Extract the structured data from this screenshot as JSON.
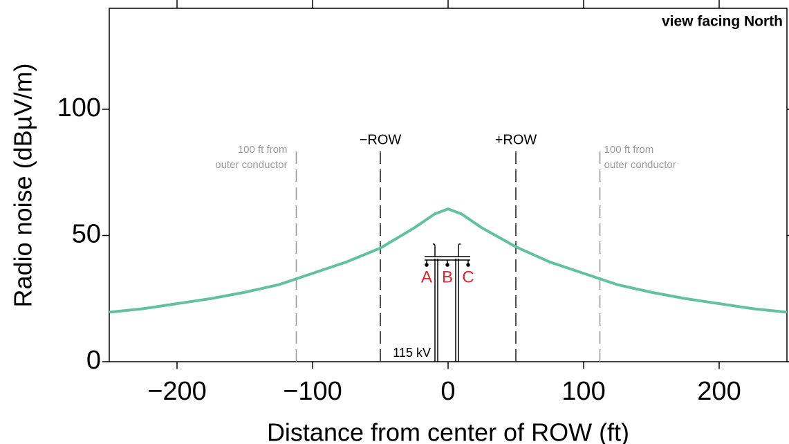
{
  "chart_data": {
    "type": "line",
    "x_label": "Distance from center of ROW (ft)",
    "y_label": "Radio noise (dBµV/m)",
    "annotation": "view facing North",
    "voltage_label": "115 kV",
    "phases": [
      "A",
      "B",
      "C"
    ],
    "phase_color": "#e0262b",
    "x": [
      -250,
      -225,
      -200,
      -175,
      -150,
      -125,
      -100,
      -75,
      -50,
      -25,
      -10,
      0,
      10,
      25,
      50,
      75,
      100,
      125,
      150,
      175,
      200,
      225,
      250
    ],
    "values": [
      19.6,
      21,
      23,
      25,
      27.5,
      30.5,
      35,
      39.5,
      45,
      53,
      58.5,
      60.5,
      58.5,
      53,
      45.5,
      39.5,
      35,
      30.5,
      27.5,
      25,
      23,
      21,
      19.6
    ],
    "color": "#62c19f",
    "reference_lines": [
      {
        "x": -112,
        "label": [
          "100 ft from",
          "outer conductor"
        ],
        "color": "#9a9a9a"
      },
      {
        "x": -50,
        "label": [
          "−ROW"
        ],
        "color": "#222222"
      },
      {
        "x": 50,
        "label": [
          "+ROW"
        ],
        "color": "#222222"
      },
      {
        "x": 112,
        "label": [
          "100 ft from",
          "outer conductor"
        ],
        "color": "#9a9a9a"
      }
    ],
    "xlim": [
      -250,
      250
    ],
    "ylim": [
      0,
      140
    ],
    "xticks": [
      {
        "value": -200,
        "label": "−200"
      },
      {
        "value": -100,
        "label": "−100"
      },
      0,
      100,
      200
    ],
    "yticks": [
      0,
      50,
      100
    ]
  }
}
